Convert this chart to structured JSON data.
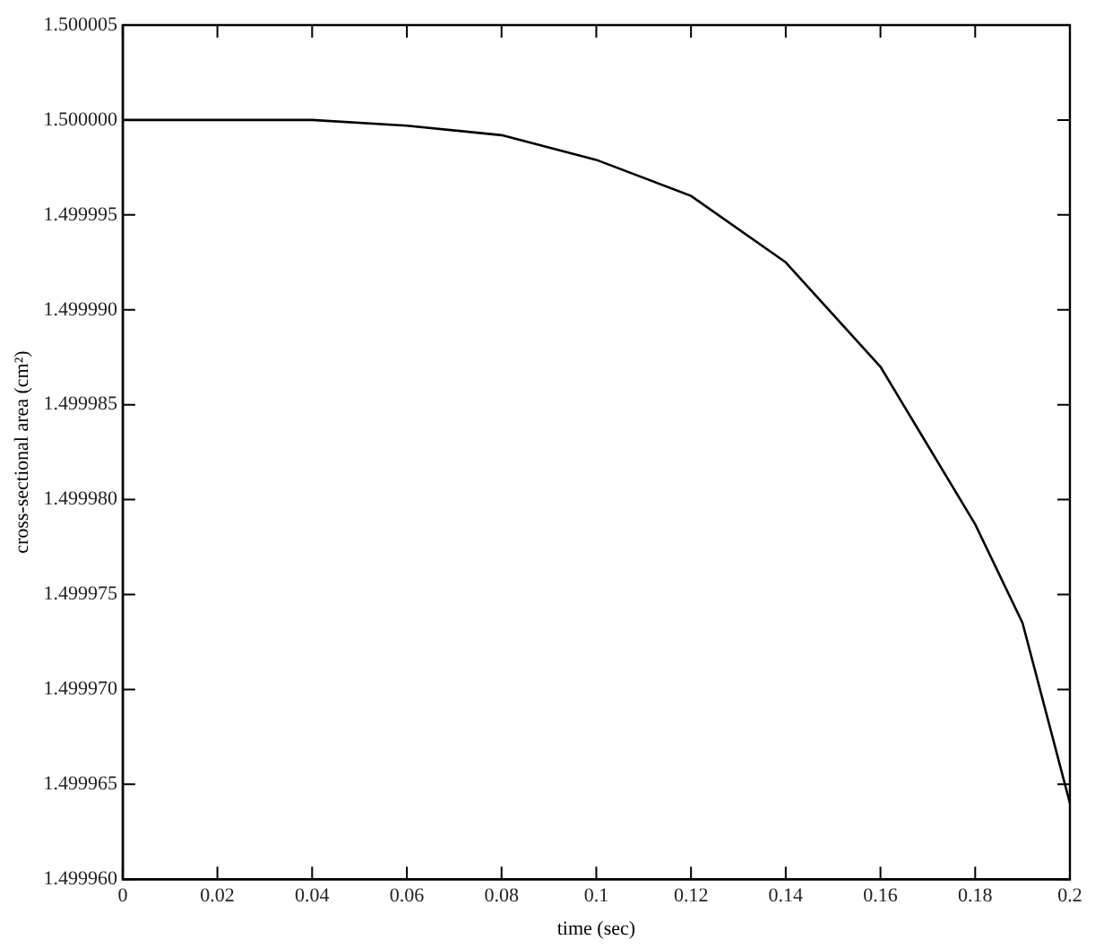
{
  "chart_data": {
    "type": "line",
    "xlabel": "time (sec)",
    "ylabel": "cross-sectional area (cm²)",
    "x": [
      0,
      0.02,
      0.04,
      0.06,
      0.08,
      0.1,
      0.12,
      0.14,
      0.16,
      0.18,
      0.19,
      0.2
    ],
    "series": [
      {
        "color": "#000000",
        "values": [
          1.5,
          1.5,
          1.5,
          1.4999997,
          1.4999992,
          1.4999979,
          1.499996,
          1.4999925,
          1.499987,
          1.4999787,
          1.4999735,
          1.499964
        ]
      }
    ],
    "xlim": [
      0,
      0.2
    ],
    "xticks": [
      0,
      0.02,
      0.04,
      0.06,
      0.08,
      0.1,
      0.12,
      0.14,
      0.16,
      0.18,
      0.2
    ],
    "ylim": [
      1.49996,
      1.500005
    ],
    "yticks": [
      {
        "value": 1.49996,
        "label": "1.499960"
      },
      {
        "value": 1.499965,
        "label": "1.499965"
      },
      {
        "value": 1.49997,
        "label": "1.499970"
      },
      {
        "value": 1.499975,
        "label": "1.499975"
      },
      {
        "value": 1.49998,
        "label": "1.499980"
      },
      {
        "value": 1.499985,
        "label": "1.499985"
      },
      {
        "value": 1.49999,
        "label": "1.499990"
      },
      {
        "value": 1.499995,
        "label": "1.499995"
      },
      {
        "value": 1.5,
        "label": "1.500000"
      },
      {
        "value": 1.500005,
        "label": "1.500005"
      }
    ],
    "grid": false,
    "legend": false,
    "marker": "none",
    "line_style": "solid"
  }
}
